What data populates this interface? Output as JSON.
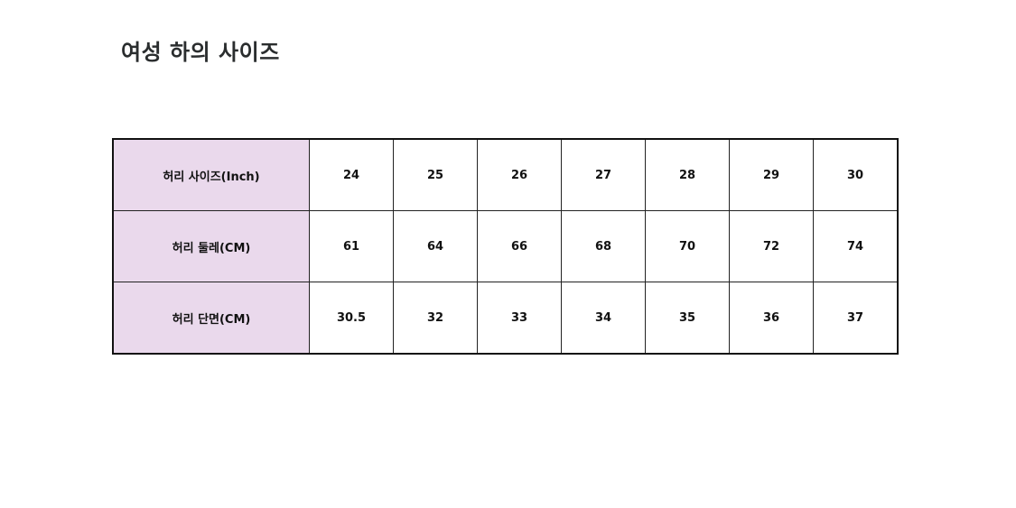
{
  "title": "여성 하의 사이즈",
  "table": {
    "header_bg": "#ead9ec",
    "rows": [
      {
        "label": "허리 사이즈(Inch)",
        "values": [
          "24",
          "25",
          "26",
          "27",
          "28",
          "29",
          "30"
        ]
      },
      {
        "label": "허리 둘레(CM)",
        "values": [
          "61",
          "64",
          "66",
          "68",
          "70",
          "72",
          "74"
        ]
      },
      {
        "label": "허리 단면(CM)",
        "values": [
          "30.5",
          "32",
          "33",
          "34",
          "35",
          "36",
          "37"
        ]
      }
    ]
  }
}
